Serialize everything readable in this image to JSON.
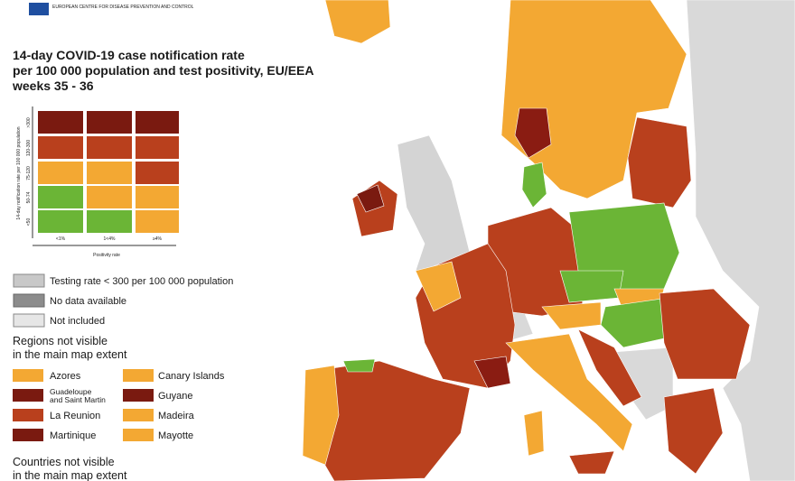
{
  "header": {
    "logo_text": "EUROPEAN CENTRE FOR DISEASE PREVENTION AND CONTROL"
  },
  "title": [
    "14-day COVID-19 case notification rate",
    "per 100 000 population and test positivity, EU/EEA",
    "weeks 35 - 36"
  ],
  "matrix": {
    "y_axis_label": "14-day notification rate per 100 000 population",
    "row_labels": [
      ">300",
      "120-300",
      "75-120",
      "50-74",
      "<50"
    ],
    "x_labels": [
      "<1%",
      "1<4%",
      "≥4%"
    ],
    "x_axis_label": "Positivity rate"
  },
  "legend": {
    "items": [
      "Testing rate < 300 per 100 000 population",
      "No data available",
      "Not included"
    ]
  },
  "regions": {
    "heading": [
      "Regions not visible",
      "in the main map extent"
    ],
    "items": [
      [
        "Azores",
        "Canary Islands"
      ],
      [
        "Guadeloupe and Saint Martin",
        "Guyane"
      ],
      [
        "La Reunion",
        "Madeira"
      ],
      [
        "Martinique",
        "Mayotte"
      ]
    ]
  },
  "countries": {
    "heading": [
      "Countries not visible",
      "in the main map extent"
    ]
  }
}
